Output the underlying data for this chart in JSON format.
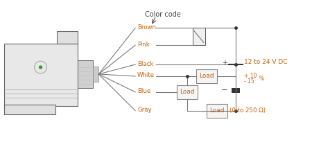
{
  "bg_color": "#ffffff",
  "wire_color": "#7a7a7a",
  "text_color_orange": "#c8600a",
  "text_color_black": "#404040",
  "wire_labels": [
    "Brown",
    "Pink",
    "Black",
    "White",
    "Blue",
    "Gray"
  ],
  "color_code_text": "Color code",
  "voltage_text": "12 to 24 V DC",
  "voltage_plus": "+",
  "voltage_minus": "−",
  "voltage_sup1": "10",
  "voltage_sup2": "15",
  "voltage_pct": "%",
  "load_text": "Load",
  "ohm_text": "(0 to 250 Ω)",
  "plus_sign": "+",
  "minus_sign": "−"
}
